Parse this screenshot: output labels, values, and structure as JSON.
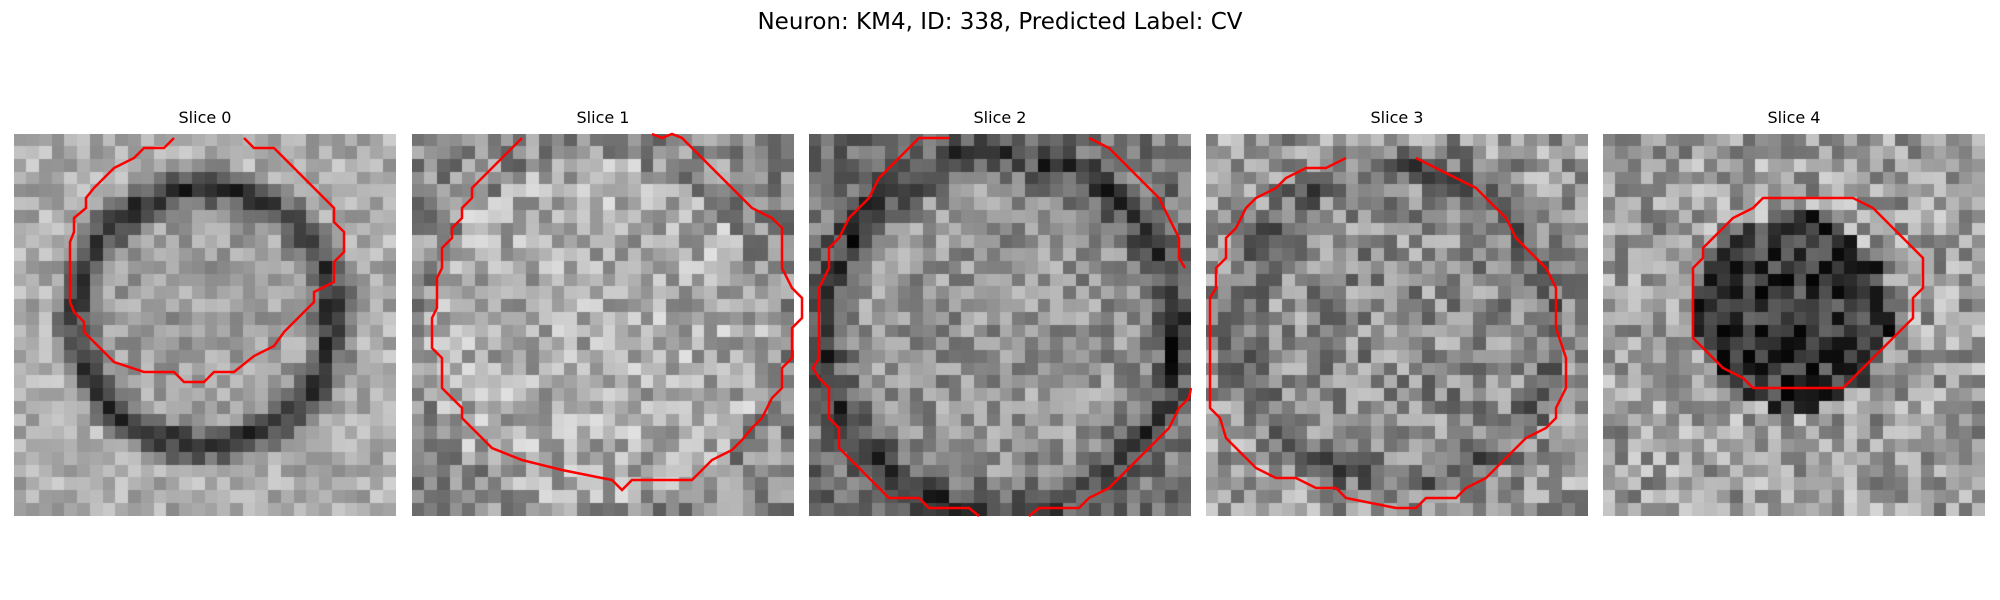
{
  "figure": {
    "title": "Neuron: KM4, ID: 338, Predicted Label: CV"
  },
  "colors": {
    "background": "#ffffff",
    "contour": "#ff0000",
    "text": "#000000"
  },
  "image": {
    "colormap": "gray"
  },
  "slices": [
    {
      "title": "Slice 0"
    },
    {
      "title": "Slice 1"
    },
    {
      "title": "Slice 2"
    },
    {
      "title": "Slice 3"
    },
    {
      "title": "Slice 4"
    }
  ]
}
